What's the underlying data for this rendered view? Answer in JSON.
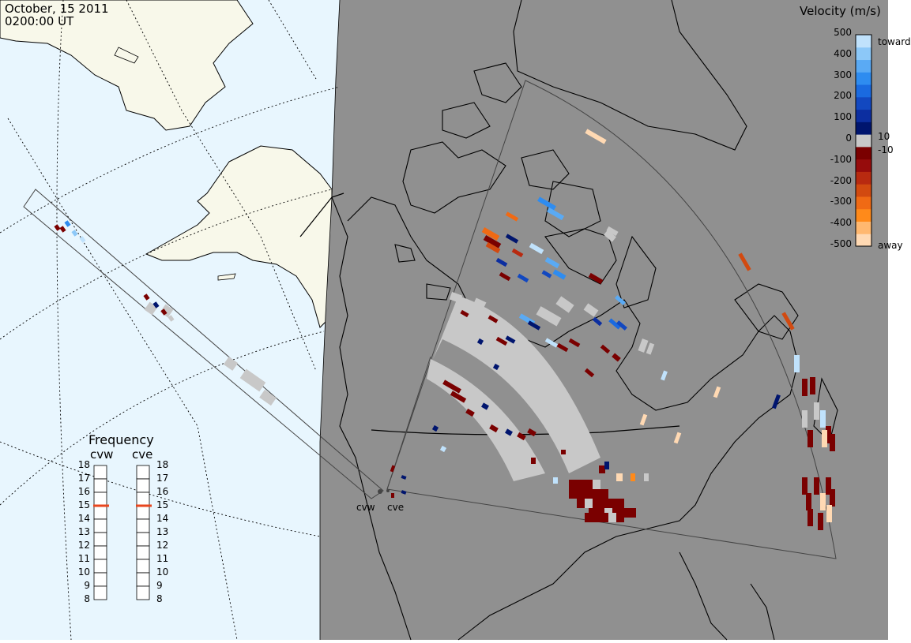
{
  "header": {
    "date": "October, 15 2011",
    "time": "0200:00 UT"
  },
  "legend": {
    "title": "Velocity (m/s)",
    "ticks": [
      "500",
      "400",
      "300",
      "200",
      "100",
      "0",
      "-100",
      "-200",
      "-300",
      "-400",
      "-500"
    ],
    "small_ticks": [
      "10",
      "-10"
    ],
    "toward_label": "toward",
    "away_label": "away",
    "colors": [
      "#ffd9b3",
      "#ffb870",
      "#ff8a1a",
      "#f06a14",
      "#d24a10",
      "#b82a10",
      "#960c0c",
      "#7a0000",
      "#c8c8c8",
      "#00156e",
      "#0c2ea0",
      "#1248c0",
      "#1a6ae0",
      "#2e8cf0",
      "#5aaaf4",
      "#8cc8f8",
      "#c0e2fc"
    ]
  },
  "frequency": {
    "title": "Frequency",
    "radars": [
      "cvw",
      "cve"
    ],
    "scale": [
      "18",
      "17",
      "16",
      "15",
      "14",
      "13",
      "12",
      "11",
      "10",
      "9",
      "8"
    ],
    "values_mhz": [
      15,
      15
    ],
    "marker_color": "#e8461e"
  },
  "radars": {
    "west": "cvw",
    "east": "cve"
  },
  "map": {
    "ocean_color": "#e8f6fe",
    "land_color": "#f8f8ea",
    "night_color": "#909090",
    "ground_scatter_color": "#c8c8c8"
  }
}
